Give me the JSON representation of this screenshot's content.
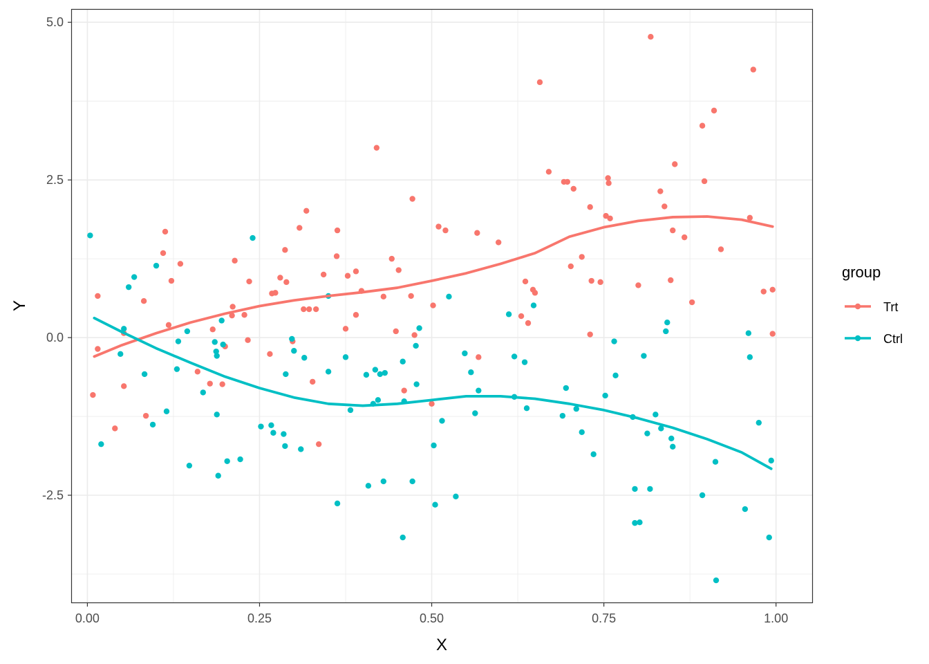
{
  "chart_data": {
    "type": "scatter",
    "xlabel": "X",
    "ylabel": "Y",
    "xlim": [
      -0.0225,
      1.0525
    ],
    "ylim": [
      -4.2,
      5.2
    ],
    "x_ticks": [
      0.0,
      0.25,
      0.5,
      0.75,
      1.0
    ],
    "x_tick_labels": [
      "0.00",
      "0.25",
      "0.50",
      "0.75",
      "1.00"
    ],
    "x_minor": [
      0.125,
      0.375,
      0.625,
      0.875
    ],
    "y_ticks": [
      -2.5,
      0.0,
      2.5,
      5.0
    ],
    "y_tick_labels": [
      "-2.5",
      "0.0",
      "2.5",
      "5.0"
    ],
    "y_minor": [
      -3.75,
      -1.25,
      1.25,
      3.75
    ],
    "grid": true,
    "legend": {
      "title": "group",
      "position": "right"
    },
    "series": [
      {
        "name": "Trt",
        "color": "#F8766D",
        "points": [
          [
            0.008,
            -0.91
          ],
          [
            0.015,
            -0.18
          ],
          [
            0.015,
            0.66
          ],
          [
            0.04,
            -1.44
          ],
          [
            0.053,
            -0.77
          ],
          [
            0.053,
            0.07
          ],
          [
            0.082,
            0.58
          ],
          [
            0.085,
            -1.24
          ],
          [
            0.11,
            1.34
          ],
          [
            0.113,
            1.68
          ],
          [
            0.118,
            0.2
          ],
          [
            0.122,
            0.9
          ],
          [
            0.135,
            1.17
          ],
          [
            0.16,
            -0.54
          ],
          [
            0.178,
            -0.73
          ],
          [
            0.182,
            0.13
          ],
          [
            0.196,
            -0.74
          ],
          [
            0.2,
            -0.14
          ],
          [
            0.21,
            0.35
          ],
          [
            0.211,
            0.49
          ],
          [
            0.214,
            1.22
          ],
          [
            0.228,
            0.36
          ],
          [
            0.233,
            -0.04
          ],
          [
            0.235,
            0.89
          ],
          [
            0.265,
            -0.26
          ],
          [
            0.268,
            0.7
          ],
          [
            0.273,
            0.71
          ],
          [
            0.28,
            0.95
          ],
          [
            0.287,
            1.39
          ],
          [
            0.289,
            0.88
          ],
          [
            0.298,
            -0.06
          ],
          [
            0.308,
            1.74
          ],
          [
            0.314,
            0.45
          ],
          [
            0.318,
            2.01
          ],
          [
            0.322,
            0.45
          ],
          [
            0.327,
            -0.7
          ],
          [
            0.332,
            0.45
          ],
          [
            0.336,
            -1.69
          ],
          [
            0.343,
            1.0
          ],
          [
            0.362,
            1.29
          ],
          [
            0.363,
            1.7
          ],
          [
            0.375,
            0.14
          ],
          [
            0.378,
            0.98
          ],
          [
            0.39,
            1.05
          ],
          [
            0.39,
            0.36
          ],
          [
            0.398,
            0.74
          ],
          [
            0.42,
            3.01
          ],
          [
            0.43,
            0.65
          ],
          [
            0.442,
            1.25
          ],
          [
            0.448,
            0.1
          ],
          [
            0.452,
            1.07
          ],
          [
            0.46,
            -0.84
          ],
          [
            0.47,
            0.66
          ],
          [
            0.472,
            2.2
          ],
          [
            0.475,
            0.04
          ],
          [
            0.5,
            -1.05
          ],
          [
            0.502,
            0.51
          ],
          [
            0.51,
            1.76
          ],
          [
            0.52,
            1.7
          ],
          [
            0.566,
            1.66
          ],
          [
            0.568,
            -0.31
          ],
          [
            0.597,
            1.51
          ],
          [
            0.63,
            0.34
          ],
          [
            0.636,
            0.89
          ],
          [
            0.64,
            0.23
          ],
          [
            0.647,
            0.76
          ],
          [
            0.65,
            0.71
          ],
          [
            0.657,
            4.05
          ],
          [
            0.67,
            2.63
          ],
          [
            0.692,
            2.47
          ],
          [
            0.697,
            2.47
          ],
          [
            0.702,
            1.13
          ],
          [
            0.706,
            2.36
          ],
          [
            0.718,
            1.28
          ],
          [
            0.73,
            2.07
          ],
          [
            0.73,
            0.05
          ],
          [
            0.732,
            0.9
          ],
          [
            0.745,
            0.88
          ],
          [
            0.753,
            1.93
          ],
          [
            0.756,
            2.53
          ],
          [
            0.757,
            2.45
          ],
          [
            0.759,
            1.89
          ],
          [
            0.8,
            0.83
          ],
          [
            0.818,
            4.77
          ],
          [
            0.832,
            2.32
          ],
          [
            0.838,
            2.08
          ],
          [
            0.847,
            0.91
          ],
          [
            0.85,
            1.7
          ],
          [
            0.853,
            2.75
          ],
          [
            0.867,
            1.59
          ],
          [
            0.878,
            0.56
          ],
          [
            0.893,
            3.36
          ],
          [
            0.896,
            2.48
          ],
          [
            0.91,
            3.6
          ],
          [
            0.92,
            1.4
          ],
          [
            0.962,
            1.9
          ],
          [
            0.967,
            4.25
          ],
          [
            0.982,
            0.73
          ],
          [
            0.995,
            0.76
          ],
          [
            0.995,
            0.06
          ]
        ],
        "smooth": [
          [
            0.01,
            -0.3
          ],
          [
            0.05,
            -0.12
          ],
          [
            0.1,
            0.07
          ],
          [
            0.15,
            0.24
          ],
          [
            0.2,
            0.38
          ],
          [
            0.25,
            0.5
          ],
          [
            0.3,
            0.59
          ],
          [
            0.35,
            0.66
          ],
          [
            0.4,
            0.72
          ],
          [
            0.45,
            0.79
          ],
          [
            0.5,
            0.9
          ],
          [
            0.55,
            1.02
          ],
          [
            0.6,
            1.17
          ],
          [
            0.65,
            1.34
          ],
          [
            0.7,
            1.6
          ],
          [
            0.75,
            1.75
          ],
          [
            0.8,
            1.85
          ],
          [
            0.85,
            1.91
          ],
          [
            0.9,
            1.92
          ],
          [
            0.95,
            1.87
          ],
          [
            0.995,
            1.76
          ]
        ]
      },
      {
        "name": "Ctrl",
        "color": "#00BFC4",
        "points": [
          [
            0.004,
            1.62
          ],
          [
            0.02,
            -1.69
          ],
          [
            0.048,
            -0.26
          ],
          [
            0.053,
            0.14
          ],
          [
            0.06,
            0.8
          ],
          [
            0.068,
            0.96
          ],
          [
            0.083,
            -0.58
          ],
          [
            0.095,
            -1.38
          ],
          [
            0.1,
            1.14
          ],
          [
            0.115,
            -1.17
          ],
          [
            0.13,
            -0.5
          ],
          [
            0.132,
            -0.06
          ],
          [
            0.145,
            0.1
          ],
          [
            0.148,
            -2.03
          ],
          [
            0.168,
            -0.87
          ],
          [
            0.185,
            -0.07
          ],
          [
            0.187,
            -0.22
          ],
          [
            0.188,
            -0.29
          ],
          [
            0.188,
            -1.22
          ],
          [
            0.19,
            -2.19
          ],
          [
            0.195,
            0.27
          ],
          [
            0.197,
            -0.11
          ],
          [
            0.203,
            -1.96
          ],
          [
            0.222,
            -1.93
          ],
          [
            0.24,
            1.58
          ],
          [
            0.252,
            -1.41
          ],
          [
            0.267,
            -1.39
          ],
          [
            0.27,
            -1.51
          ],
          [
            0.285,
            -1.53
          ],
          [
            0.287,
            -1.72
          ],
          [
            0.288,
            -0.58
          ],
          [
            0.297,
            -0.02
          ],
          [
            0.3,
            -0.21
          ],
          [
            0.31,
            -1.77
          ],
          [
            0.315,
            -0.32
          ],
          [
            0.35,
            0.66
          ],
          [
            0.35,
            -0.54
          ],
          [
            0.363,
            -2.63
          ],
          [
            0.375,
            -0.31
          ],
          [
            0.382,
            -1.15
          ],
          [
            0.405,
            -0.59
          ],
          [
            0.408,
            -2.35
          ],
          [
            0.415,
            -1.05
          ],
          [
            0.418,
            -0.51
          ],
          [
            0.422,
            -0.99
          ],
          [
            0.425,
            -0.58
          ],
          [
            0.43,
            -2.28
          ],
          [
            0.432,
            -0.56
          ],
          [
            0.458,
            -0.38
          ],
          [
            0.458,
            -3.17
          ],
          [
            0.46,
            -1.01
          ],
          [
            0.472,
            -2.28
          ],
          [
            0.477,
            -0.13
          ],
          [
            0.478,
            -0.74
          ],
          [
            0.482,
            0.15
          ],
          [
            0.503,
            -1.71
          ],
          [
            0.505,
            -2.65
          ],
          [
            0.515,
            -1.32
          ],
          [
            0.525,
            0.65
          ],
          [
            0.535,
            -2.52
          ],
          [
            0.548,
            -0.25
          ],
          [
            0.557,
            -0.55
          ],
          [
            0.563,
            -1.2
          ],
          [
            0.568,
            -0.84
          ],
          [
            0.612,
            0.37
          ],
          [
            0.62,
            -0.3
          ],
          [
            0.62,
            -0.94
          ],
          [
            0.635,
            -0.39
          ],
          [
            0.638,
            -1.12
          ],
          [
            0.648,
            0.51
          ],
          [
            0.69,
            -1.24
          ],
          [
            0.695,
            -0.8
          ],
          [
            0.71,
            -1.13
          ],
          [
            0.718,
            -1.5
          ],
          [
            0.735,
            -1.85
          ],
          [
            0.752,
            -0.92
          ],
          [
            0.765,
            -0.06
          ],
          [
            0.767,
            -0.6
          ],
          [
            0.792,
            -1.26
          ],
          [
            0.795,
            -2.4
          ],
          [
            0.795,
            -2.94
          ],
          [
            0.802,
            -2.93
          ],
          [
            0.808,
            -0.29
          ],
          [
            0.813,
            -1.52
          ],
          [
            0.817,
            -2.4
          ],
          [
            0.825,
            -1.22
          ],
          [
            0.833,
            -1.44
          ],
          [
            0.84,
            0.1
          ],
          [
            0.842,
            0.24
          ],
          [
            0.848,
            -1.6
          ],
          [
            0.85,
            -1.73
          ],
          [
            0.893,
            -2.5
          ],
          [
            0.912,
            -1.97
          ],
          [
            0.913,
            -3.85
          ],
          [
            0.955,
            -2.72
          ],
          [
            0.96,
            0.07
          ],
          [
            0.962,
            -0.31
          ],
          [
            0.975,
            -1.35
          ],
          [
            0.99,
            -3.17
          ],
          [
            0.993,
            -1.95
          ]
        ],
        "smooth": [
          [
            0.01,
            0.31
          ],
          [
            0.05,
            0.09
          ],
          [
            0.1,
            -0.17
          ],
          [
            0.15,
            -0.4
          ],
          [
            0.2,
            -0.62
          ],
          [
            0.25,
            -0.8
          ],
          [
            0.3,
            -0.95
          ],
          [
            0.35,
            -1.05
          ],
          [
            0.4,
            -1.08
          ],
          [
            0.45,
            -1.05
          ],
          [
            0.5,
            -0.99
          ],
          [
            0.55,
            -0.93
          ],
          [
            0.6,
            -0.93
          ],
          [
            0.65,
            -0.97
          ],
          [
            0.7,
            -1.05
          ],
          [
            0.75,
            -1.15
          ],
          [
            0.8,
            -1.28
          ],
          [
            0.85,
            -1.43
          ],
          [
            0.9,
            -1.61
          ],
          [
            0.95,
            -1.82
          ],
          [
            0.993,
            -2.08
          ]
        ]
      }
    ]
  }
}
